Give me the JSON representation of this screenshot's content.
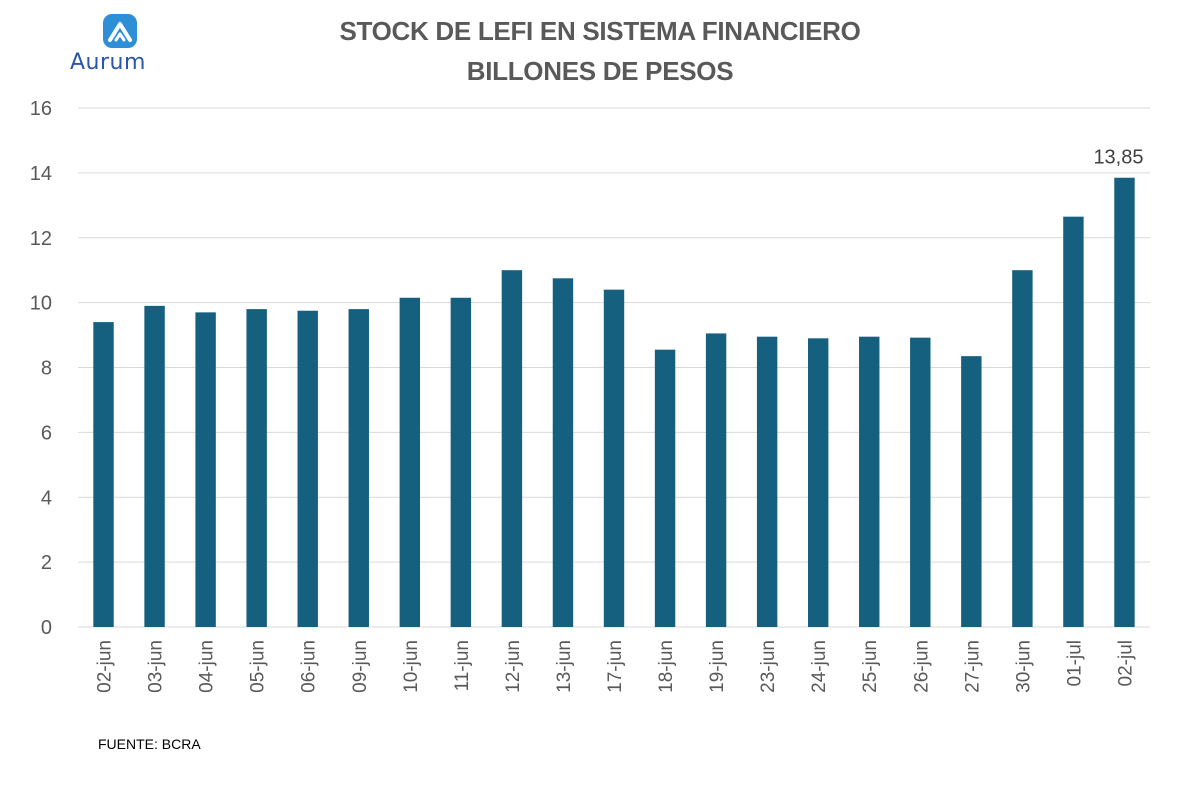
{
  "header": {
    "title_line1": "STOCK DE LEFI EN SISTEMA FINANCIERO",
    "title_line2": "BILLONES DE PESOS",
    "logo_text": "Aurum",
    "logo_icon": "aurum-logo-icon"
  },
  "footer": {
    "source": "FUENTE: BCRA"
  },
  "colors": {
    "bar": "#16607f",
    "grid": "#d9d9d9",
    "axis_text": "#595959",
    "title": "#595959",
    "logo": "#2b57a6"
  },
  "chart_data": {
    "type": "bar",
    "title": "STOCK DE LEFI EN SISTEMA FINANCIERO\nBILLONES DE PESOS",
    "xlabel": "",
    "ylabel": "",
    "categories": [
      "02-jun",
      "03-jun",
      "04-jun",
      "05-jun",
      "06-jun",
      "09-jun",
      "10-jun",
      "11-jun",
      "12-jun",
      "13-jun",
      "17-jun",
      "18-jun",
      "19-jun",
      "23-jun",
      "24-jun",
      "25-jun",
      "26-jun",
      "27-jun",
      "30-jun",
      "01-jul",
      "02-jul"
    ],
    "values": [
      9.4,
      9.9,
      9.7,
      9.8,
      9.75,
      9.8,
      10.15,
      10.15,
      11.0,
      10.75,
      10.4,
      8.55,
      9.05,
      8.95,
      8.9,
      8.95,
      8.92,
      8.35,
      11.0,
      12.65,
      13.85
    ],
    "ylim": [
      0,
      16
    ],
    "yticks": [
      0,
      2,
      4,
      6,
      8,
      10,
      12,
      14,
      16
    ],
    "grid": true,
    "legend": "none",
    "data_labels": [
      {
        "index": 20,
        "text": "13,85"
      }
    ]
  }
}
